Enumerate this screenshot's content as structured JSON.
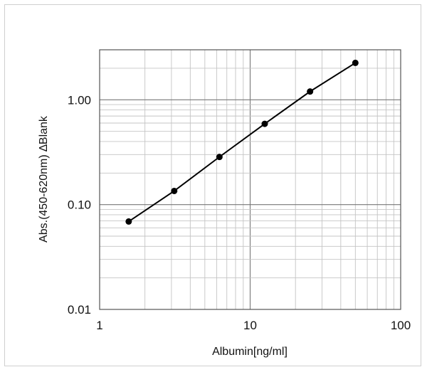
{
  "chart_data": {
    "type": "line",
    "title": "",
    "xlabel": "Albumin[ng/ml]",
    "ylabel": "Abs.(450-620nm) ∆Blank",
    "xscale": "log",
    "yscale": "log",
    "xlim": [
      1,
      100
    ],
    "ylim": [
      0.01,
      3
    ],
    "xticks": [
      1,
      10,
      100
    ],
    "xtick_labels": [
      "1",
      "10",
      "100"
    ],
    "yticks": [
      0.01,
      0.1,
      1
    ],
    "ytick_labels": [
      "0.01",
      "0.10",
      "1.00"
    ],
    "grid": true,
    "legend": "none",
    "series": [
      {
        "x": [
          1.56,
          3.13,
          6.25,
          12.5,
          25,
          50
        ],
        "y": [
          0.069,
          0.135,
          0.285,
          0.59,
          1.2,
          2.25
        ],
        "color": "#000000",
        "markers": true
      }
    ]
  }
}
